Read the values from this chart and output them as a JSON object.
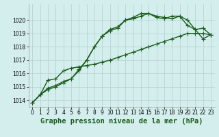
{
  "title": "Graphe pression niveau de la mer (hPa)",
  "background_color": "#d4eeed",
  "grid_color": "#b0d0cc",
  "line_color": "#1a5c1a",
  "x_values": [
    0,
    1,
    2,
    3,
    4,
    5,
    6,
    7,
    8,
    9,
    10,
    11,
    12,
    13,
    14,
    15,
    16,
    17,
    18,
    19,
    20,
    21,
    22,
    23
  ],
  "series": [
    [
      1013.8,
      1014.4,
      1014.8,
      1015.0,
      1015.3,
      1015.6,
      1016.2,
      1017.0,
      1018.0,
      1018.8,
      1019.2,
      1019.4,
      1020.0,
      1020.1,
      1020.3,
      1020.5,
      1020.3,
      1020.2,
      1020.1,
      1020.3,
      1019.6,
      1019.3,
      1019.4,
      1018.9
    ],
    [
      1013.8,
      1014.4,
      1015.5,
      1015.6,
      1016.2,
      1016.4,
      1016.5,
      1016.6,
      1016.7,
      1016.85,
      1017.0,
      1017.2,
      1017.4,
      1017.6,
      1017.8,
      1018.0,
      1018.2,
      1018.4,
      1018.6,
      1018.8,
      1019.0,
      1019.0,
      1019.0,
      1018.9
    ],
    [
      1013.8,
      1014.4,
      1014.9,
      1015.1,
      1015.4,
      1015.6,
      1016.3,
      1017.0,
      1018.0,
      1018.8,
      1019.3,
      1019.5,
      1020.0,
      1020.2,
      1020.5,
      1020.5,
      1020.2,
      1020.1,
      1020.3,
      1020.3,
      1020.0,
      1019.3,
      1018.6,
      1018.9
    ]
  ],
  "ylim": [
    1013.5,
    1021.2
  ],
  "yticks": [
    1014,
    1015,
    1016,
    1017,
    1018,
    1019,
    1020
  ],
  "xticks": [
    0,
    1,
    2,
    3,
    4,
    5,
    6,
    7,
    8,
    9,
    10,
    11,
    12,
    13,
    14,
    15,
    16,
    17,
    18,
    19,
    20,
    21,
    22,
    23
  ],
  "marker": "+",
  "marker_size": 4,
  "linewidth": 1.0,
  "title_fontsize": 7.5,
  "tick_fontsize": 5.5
}
